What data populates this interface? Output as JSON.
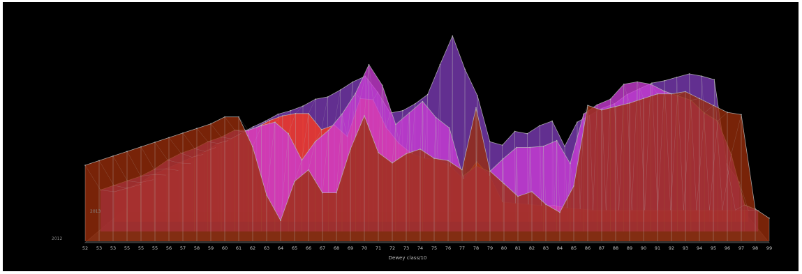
{
  "chart_data": {
    "type": "area",
    "title": "",
    "xlabel": "Dewey class/10",
    "ylabel": "",
    "x": [
      "52",
      "53",
      "53",
      "55",
      "55",
      "55",
      "56",
      "57",
      "58",
      "59",
      "60",
      "61",
      "62",
      "63",
      "64",
      "65",
      "66",
      "67",
      "68",
      "69",
      "70",
      "71",
      "72",
      "73",
      "74",
      "75",
      "76",
      "77",
      "78",
      "79",
      "80",
      "81",
      "82",
      "83",
      "84",
      "85",
      "86",
      "87",
      "88",
      "89",
      "90",
      "91",
      "92",
      "93",
      "94",
      "95",
      "96",
      "97",
      "98",
      "99"
    ],
    "depth_labels": [
      "2013",
      "2012"
    ],
    "colors": {
      "background": "#000000",
      "floor": "#2e2f2e",
      "grid": "#b8b8b8"
    },
    "series": [
      {
        "color": "#9a2d0a",
        "values": [
          6,
          6.4,
          6.8,
          7.2,
          7.6,
          8,
          8.4,
          8.8,
          9.2,
          9.6,
          10.2,
          10.2,
          7.6,
          3.4,
          1.2,
          4.6,
          5.6,
          3.6,
          3.6,
          7.4,
          10.3,
          7.1,
          6.2,
          7,
          7.4,
          6.6,
          6.4,
          5.6,
          11,
          5.5,
          4.4,
          3.3,
          3.7,
          2.6,
          1.9,
          4.2,
          11.2,
          10.8,
          11.1,
          11.4,
          11.8,
          12.2,
          12.2,
          12.4,
          11.8,
          11.2,
          10.6,
          10.4,
          2.2,
          1.4
        ]
      },
      {
        "color": "#cc3cd6",
        "values": [
          3,
          3.4,
          3.8,
          4.2,
          4.8,
          5.6,
          6.2,
          6.6,
          7.2,
          7.6,
          8.2,
          8.2,
          8.6,
          8.9,
          7.9,
          5.6,
          7.2,
          8.2,
          9.6,
          11.4,
          13.9,
          12.1,
          8.7,
          9.7,
          10.7,
          9.3,
          8.4,
          4.2,
          5.1,
          4.6,
          5.7,
          6.7,
          6.7,
          6.8,
          7.3,
          5.3,
          9.6,
          10.4,
          10.9,
          12.2,
          12.4,
          12.2,
          11.6,
          11.2,
          10.8,
          9.7,
          9,
          6.1,
          1.7,
          1.2
        ]
      },
      {
        "color": "#ff3a1c",
        "values": [
          2,
          2.3,
          2.8,
          3.5,
          4,
          4.5,
          5,
          5.5,
          6.2,
          6.6,
          7.2,
          7.6,
          8.2,
          8.6,
          8.8,
          8.8,
          7.4,
          7.8,
          6.8,
          10.1,
          10,
          7.6,
          6.2,
          5.3,
          4.9,
          4.8,
          4.2,
          3.1,
          4.6,
          3.4,
          1.1,
          1,
          0.9,
          0.8,
          0.8,
          0.6,
          0.5,
          0.4,
          0.4,
          0.4,
          0.4,
          0.4,
          0.4,
          0.4,
          0.4,
          0.4,
          0.4,
          0.4,
          0.4,
          0.4
        ]
      },
      {
        "color": "#7e3cb8",
        "values": [
          1.5,
          1.8,
          2.2,
          2.6,
          3,
          3.6,
          4.4,
          5,
          5.6,
          6.2,
          6.8,
          7.3,
          7.9,
          8.2,
          8.6,
          9.2,
          9.4,
          10,
          10.7,
          11.2,
          9.8,
          8,
          8.2,
          8.8,
          9.6,
          12.2,
          14.7,
          11.8,
          9.5,
          5.5,
          5.2,
          6.4,
          6.2,
          6.9,
          7.3,
          5.1,
          7.2,
          7.8,
          8.4,
          8.8,
          9.6,
          10.1,
          10.6,
          10.8,
          11.1,
          11.4,
          11.2,
          10.9,
          3.6,
          2
        ]
      }
    ]
  }
}
